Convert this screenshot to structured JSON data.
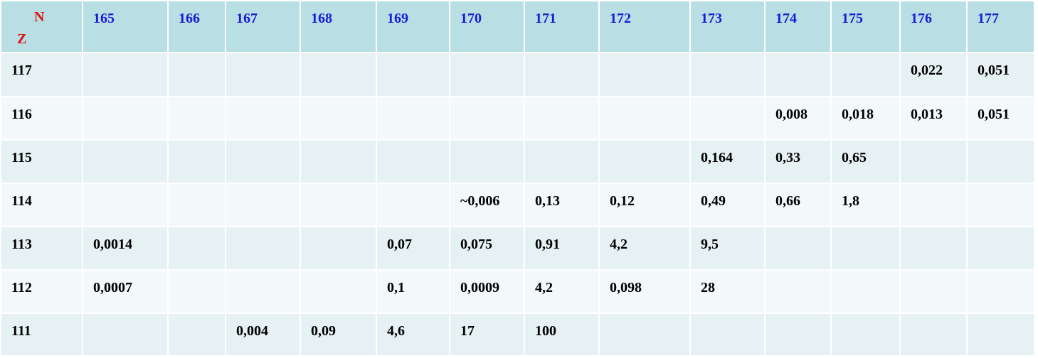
{
  "table": {
    "corner": {
      "top": "N",
      "bottom": "Z"
    },
    "columns": [
      165,
      166,
      167,
      168,
      169,
      170,
      171,
      172,
      173,
      174,
      175,
      176,
      177
    ],
    "rows": [
      {
        "label": 117,
        "cells": [
          null,
          null,
          null,
          null,
          null,
          null,
          null,
          null,
          null,
          null,
          null,
          "0,022",
          "0,051"
        ]
      },
      {
        "label": 116,
        "cells": [
          null,
          null,
          null,
          null,
          null,
          null,
          null,
          null,
          null,
          "0,008",
          "0,018",
          "0,013",
          "0,051"
        ]
      },
      {
        "label": 115,
        "cells": [
          null,
          null,
          null,
          null,
          null,
          null,
          null,
          null,
          "0,164",
          "0,33",
          "0,65",
          null,
          null
        ]
      },
      {
        "label": 114,
        "cells": [
          null,
          null,
          null,
          null,
          null,
          "~0,006",
          "0,13",
          "0,12",
          "0,49",
          "0,66",
          "1,8",
          null,
          null
        ]
      },
      {
        "label": 113,
        "cells": [
          "0,0014",
          null,
          null,
          null,
          "0,07",
          "0,075",
          "0,91",
          "4,2",
          "9,5",
          null,
          null,
          null,
          null
        ]
      },
      {
        "label": 112,
        "cells": [
          "0,0007",
          null,
          null,
          null,
          "0,1",
          "0,0009",
          "4,2",
          "0,098",
          "28",
          null,
          null,
          null,
          null
        ]
      },
      {
        "label": 111,
        "cells": [
          null,
          null,
          "0,004",
          "0,09",
          "4,6",
          "17",
          "100",
          null,
          null,
          null,
          null,
          null,
          null
        ]
      }
    ]
  }
}
